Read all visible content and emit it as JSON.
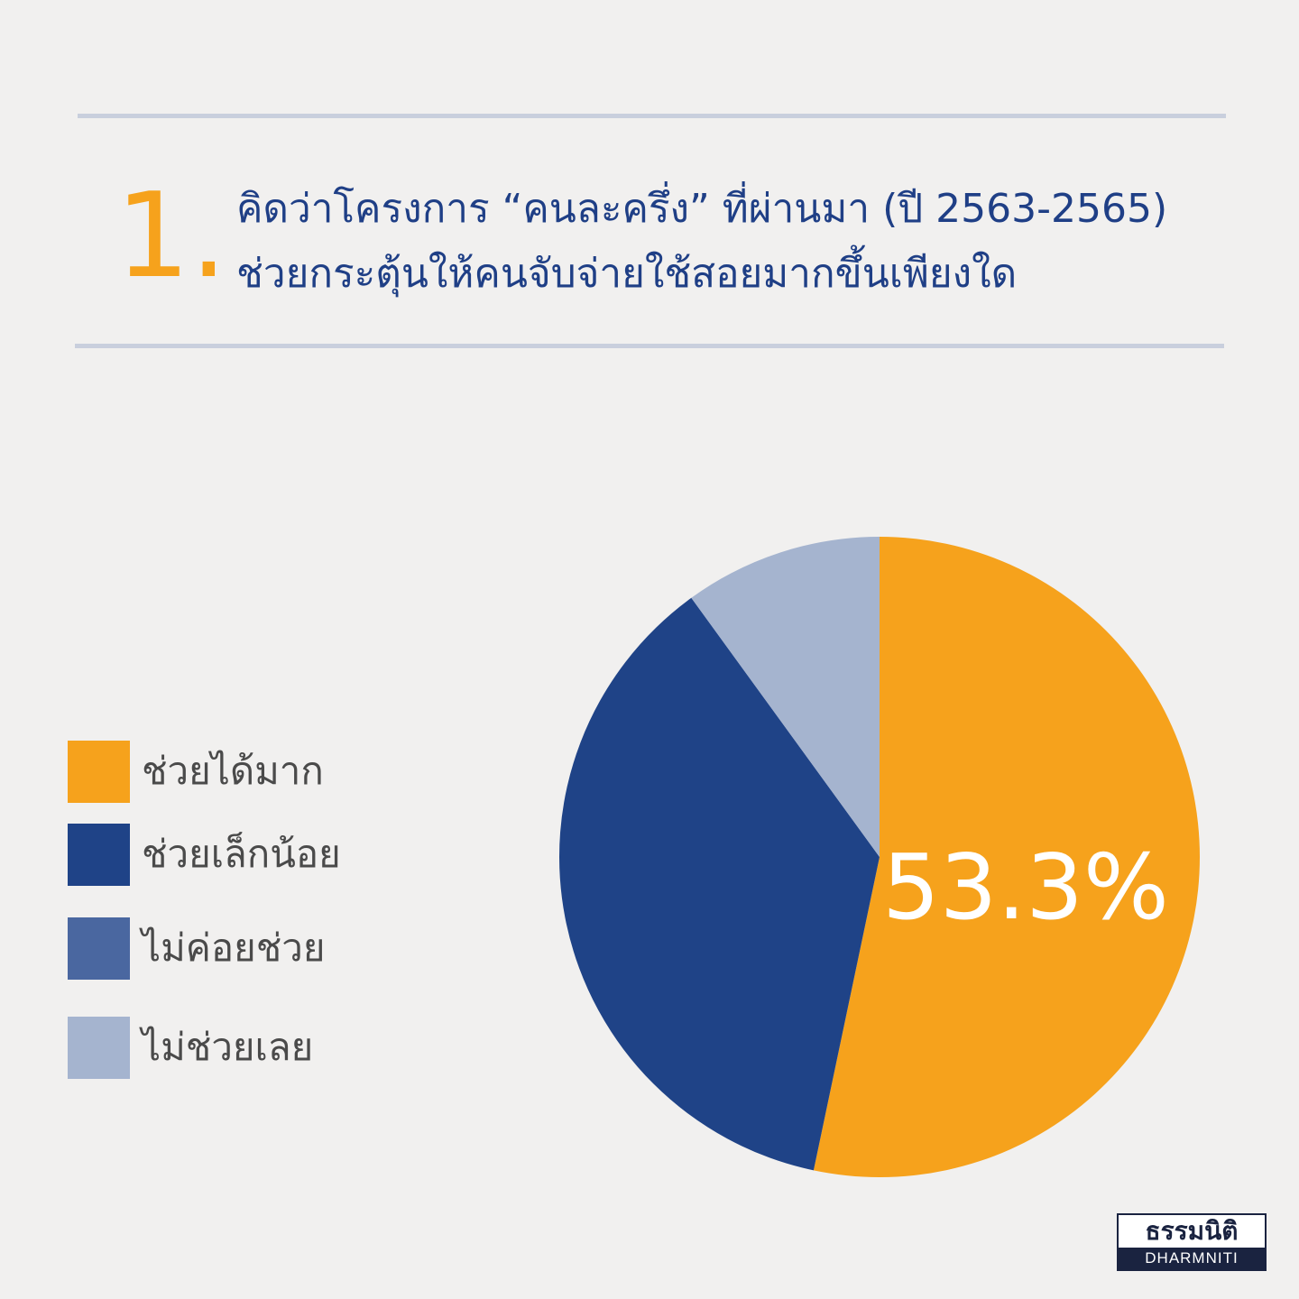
{
  "question": {
    "number": "1.",
    "line1": "คิดว่าโครงการ “คนละครึ่ง” ที่ผ่านมา (ปี 2563-2565)",
    "line2": "ช่วยกระตุ้นให้คนจับจ่ายใช้สอยมากขึ้นเพียงใด"
  },
  "colors": {
    "background": "#f1f0ef",
    "accent_orange": "#f6a21c",
    "navy": "#1f4387",
    "mid_blue": "#4a67a0",
    "light_blue": "#a5b4cf",
    "title_text": "#1f3f86",
    "rule": "#c9cfdd"
  },
  "chart_data": {
    "type": "pie",
    "title": "",
    "slices": [
      {
        "label": "ช่วยได้มาก",
        "value": 53.3,
        "color": "#f6a21c"
      },
      {
        "label": "ช่วยเล็กน้อย",
        "value": 36.7,
        "color": "#1f4387"
      },
      {
        "label": "ไม่ค่อยช่วย",
        "value": 0,
        "color": "#4a67a0"
      },
      {
        "label": "ไม่ช่วยเลย",
        "value": 10.0,
        "color": "#a5b4cf"
      }
    ],
    "data_labels": [
      "53.3%"
    ],
    "legend_position": "left"
  },
  "legend": {
    "items": [
      {
        "label": "ช่วยได้มาก",
        "color": "#f6a21c"
      },
      {
        "label": "ช่วยเล็กน้อย",
        "color": "#1f4387"
      },
      {
        "label": "ไม่ค่อยช่วย",
        "color": "#4a67a0"
      },
      {
        "label": "ไม่ช่วยเลย",
        "color": "#a5b4cf"
      }
    ]
  },
  "logo": {
    "thai": "ธรรมนิติ",
    "english": "DHARMNITI"
  }
}
